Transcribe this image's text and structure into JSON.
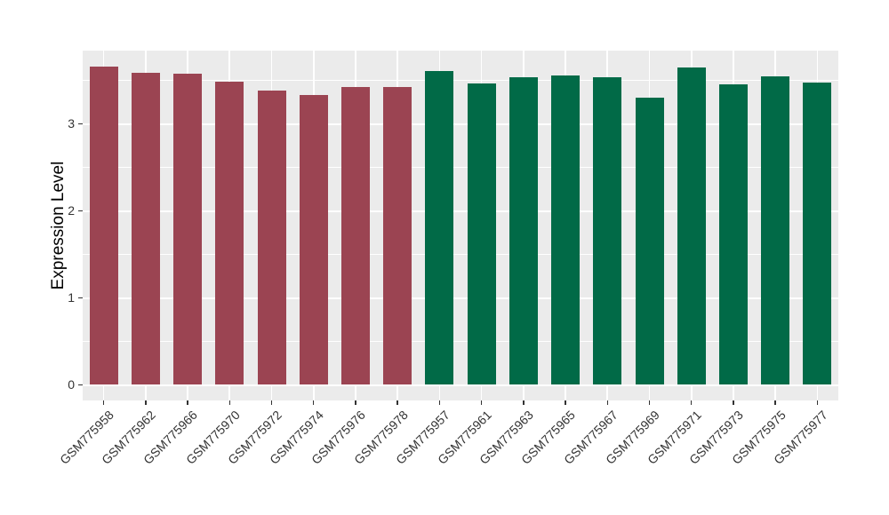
{
  "figure": {
    "background": "#FFFFFF"
  },
  "chart_data": {
    "type": "bar",
    "title": "",
    "xlabel": "",
    "ylabel": "Expression Level",
    "yticks": [
      0,
      1,
      2,
      3
    ],
    "minor_breaks": [
      0.5,
      1.5,
      2.5,
      3.5
    ],
    "ylim": [
      -0.18,
      3.84
    ],
    "grid": "on",
    "legend": "none",
    "colors": {
      "panel_bg": "#EBEBEB",
      "grid": "#FFFFFF",
      "axis_text": "#333333",
      "axis_title": "#000000",
      "groupA": "#9B4452",
      "groupB": "#016A47"
    },
    "bars": [
      {
        "label": "GSM775958",
        "value": 3.66,
        "group": "groupA"
      },
      {
        "label": "GSM775962",
        "value": 3.58,
        "group": "groupA"
      },
      {
        "label": "GSM775966",
        "value": 3.57,
        "group": "groupA"
      },
      {
        "label": "GSM775970",
        "value": 3.48,
        "group": "groupA"
      },
      {
        "label": "GSM775972",
        "value": 3.38,
        "group": "groupA"
      },
      {
        "label": "GSM775974",
        "value": 3.33,
        "group": "groupA"
      },
      {
        "label": "GSM775976",
        "value": 3.42,
        "group": "groupA"
      },
      {
        "label": "GSM775978",
        "value": 3.42,
        "group": "groupA"
      },
      {
        "label": "GSM775957",
        "value": 3.61,
        "group": "groupB"
      },
      {
        "label": "GSM775961",
        "value": 3.46,
        "group": "groupB"
      },
      {
        "label": "GSM775963",
        "value": 3.53,
        "group": "groupB"
      },
      {
        "label": "GSM775965",
        "value": 3.55,
        "group": "groupB"
      },
      {
        "label": "GSM775967",
        "value": 3.53,
        "group": "groupB"
      },
      {
        "label": "GSM775969",
        "value": 3.3,
        "group": "groupB"
      },
      {
        "label": "GSM775971",
        "value": 3.65,
        "group": "groupB"
      },
      {
        "label": "GSM775973",
        "value": 3.45,
        "group": "groupB"
      },
      {
        "label": "GSM775975",
        "value": 3.54,
        "group": "groupB"
      },
      {
        "label": "GSM775977",
        "value": 3.47,
        "group": "groupB"
      }
    ]
  }
}
